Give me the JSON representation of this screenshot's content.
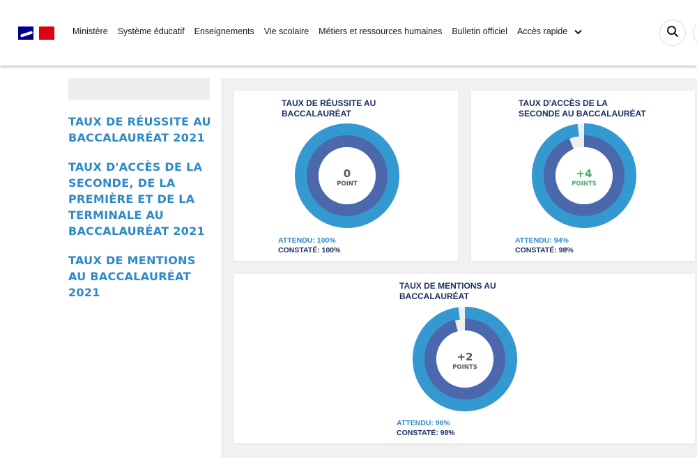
{
  "header": {
    "nav": [
      {
        "label": "Ministère"
      },
      {
        "label": "Système éducatif"
      },
      {
        "label": "Enseignements"
      },
      {
        "label": "Vie scolaire"
      },
      {
        "label": "Métiers et ressources humaines"
      },
      {
        "label": "Bulletin officiel"
      },
      {
        "label": "Accès rapide"
      }
    ],
    "search_icon": "search-icon"
  },
  "sidebar": {
    "links": [
      {
        "label": "TAUX DE RÉUSSITE AU BACCALAURÉAT 2021"
      },
      {
        "label": "TAUX D'ACCÈS DE LA SECONDE, DE LA PREMIÈRE ET DE LA TERMINALE AU BACCALAURÉAT 2021"
      },
      {
        "label": "TAUX DE MENTIONS AU BACCALAURÉAT 2021"
      }
    ]
  },
  "colors": {
    "outer_ring": "#3499d1",
    "inner_ring": "#4a68ab",
    "gap": "#efefef",
    "neutral_value": "#595959",
    "positive_value": "#4daa6d",
    "title": "#1c2f66",
    "accent": "#2e8ac7"
  },
  "cards": [
    {
      "title_lines": [
        "TAUX DE RÉUSSITE AU",
        "BACCALAURÉAT"
      ],
      "center_value": "0",
      "center_unit": "POINT",
      "value_color": "neutral",
      "attendu": "ATTENDU: 100%",
      "constate": "CONSTATÉ: 100%",
      "attendu_pct": 100,
      "constate_pct": 100
    },
    {
      "title_lines": [
        "TAUX D'ACCÈS DE LA",
        "SECONDE AU BACCALAURÉAT"
      ],
      "center_value": "+4",
      "center_unit": "POINTS",
      "value_color": "positive",
      "attendu": "ATTENDU: 94%",
      "constate": "CONSTATÉ: 98%",
      "attendu_pct": 94,
      "constate_pct": 98
    },
    {
      "title_lines": [
        "TAUX DE MENTIONS AU",
        "BACCALAURÉAT"
      ],
      "center_value": "+2",
      "center_unit": "POINTS",
      "value_color": "neutral",
      "attendu": "ATTENDU: 96%",
      "constate": "CONSTATÉ: 98%",
      "attendu_pct": 96,
      "constate_pct": 98
    }
  ]
}
